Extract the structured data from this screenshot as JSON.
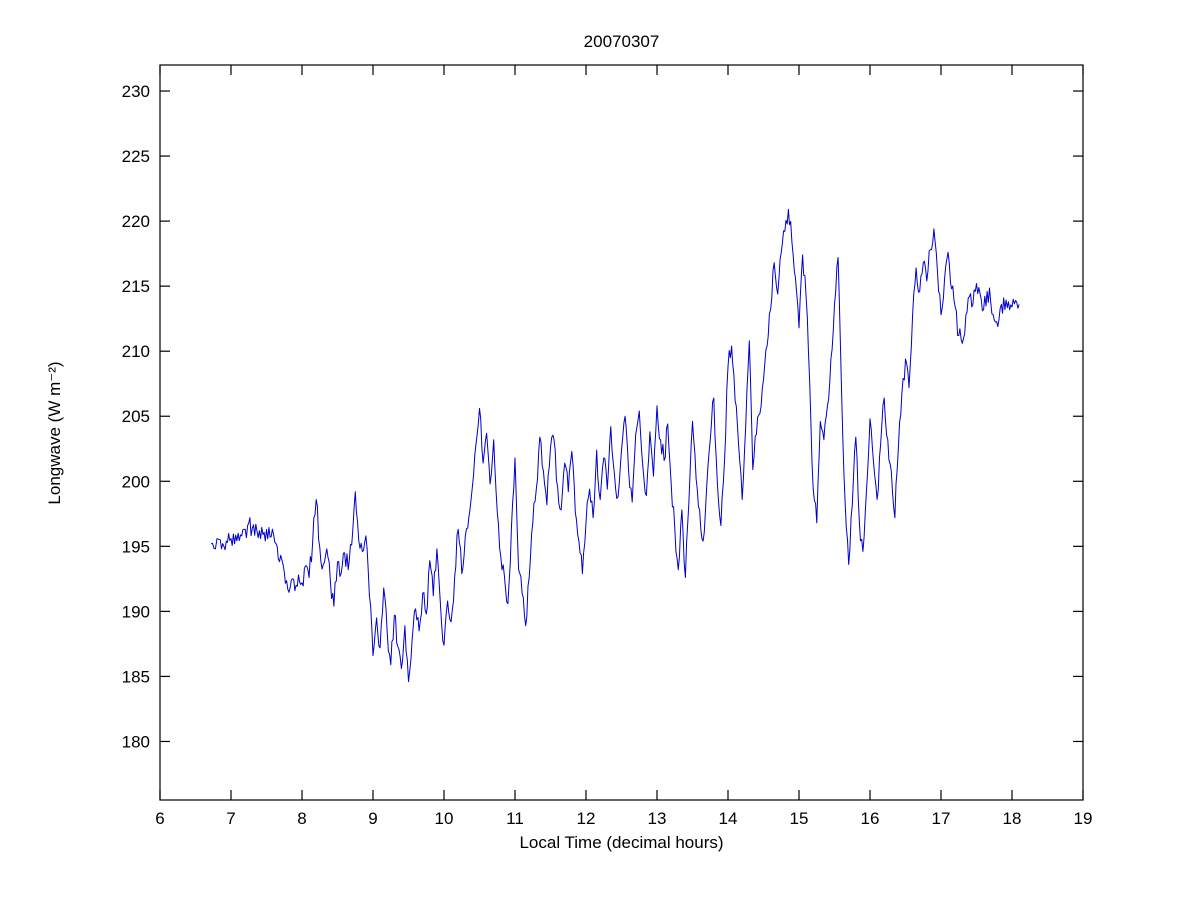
{
  "figure": {
    "background": "#ffffff",
    "axis_color": "#000000",
    "tick_font_size": 17
  },
  "chart_data": {
    "type": "line",
    "title": "20070307",
    "xlabel": "Local Time (decimal hours)",
    "ylabel": "Longwave (W m⁻²)",
    "xlim": [
      6,
      19
    ],
    "ylim": [
      175.5,
      232
    ],
    "x_ticks": [
      6,
      7,
      8,
      9,
      10,
      11,
      12,
      13,
      14,
      15,
      16,
      17,
      18,
      19
    ],
    "y_ticks": [
      180,
      185,
      190,
      195,
      200,
      205,
      210,
      215,
      220,
      225,
      230
    ],
    "grid": false,
    "legend": null,
    "noise": {
      "amplitude": 0.8,
      "substeps": 3,
      "seed": 42
    },
    "series": [
      {
        "name": "longwave",
        "color": "#0000cc",
        "points": [
          [
            6.72,
            195.2
          ],
          [
            6.78,
            194.8
          ],
          [
            6.85,
            195.5
          ],
          [
            6.9,
            195.0
          ],
          [
            6.95,
            195.3
          ],
          [
            7.0,
            195.6
          ],
          [
            7.05,
            195.2
          ],
          [
            7.1,
            196.0
          ],
          [
            7.15,
            195.8
          ],
          [
            7.2,
            196.3
          ],
          [
            7.25,
            196.8
          ],
          [
            7.3,
            196.4
          ],
          [
            7.35,
            196.7
          ],
          [
            7.4,
            196.2
          ],
          [
            7.45,
            195.9
          ],
          [
            7.5,
            196.3
          ],
          [
            7.55,
            195.7
          ],
          [
            7.6,
            195.9
          ],
          [
            7.65,
            195.0
          ],
          [
            7.7,
            194.3
          ],
          [
            7.75,
            193.0
          ],
          [
            7.8,
            191.7
          ],
          [
            7.85,
            192.4
          ],
          [
            7.9,
            191.6
          ],
          [
            7.95,
            192.8
          ],
          [
            8.0,
            192.2
          ],
          [
            8.05,
            193.5
          ],
          [
            8.1,
            192.6
          ],
          [
            8.15,
            195.4
          ],
          [
            8.2,
            198.6
          ],
          [
            8.25,
            194.9
          ],
          [
            8.3,
            193.6
          ],
          [
            8.35,
            194.8
          ],
          [
            8.4,
            192.3
          ],
          [
            8.45,
            190.4
          ],
          [
            8.5,
            193.8
          ],
          [
            8.55,
            192.9
          ],
          [
            8.6,
            194.5
          ],
          [
            8.65,
            193.2
          ],
          [
            8.7,
            195.1
          ],
          [
            8.75,
            199.2
          ],
          [
            8.8,
            195.4
          ],
          [
            8.85,
            194.6
          ],
          [
            8.9,
            195.8
          ],
          [
            8.95,
            191.2
          ],
          [
            9.0,
            186.6
          ],
          [
            9.05,
            189.5
          ],
          [
            9.1,
            187.2
          ],
          [
            9.15,
            191.8
          ],
          [
            9.2,
            188.4
          ],
          [
            9.25,
            185.9
          ],
          [
            9.3,
            189.7
          ],
          [
            9.35,
            187.3
          ],
          [
            9.4,
            185.6
          ],
          [
            9.45,
            188.9
          ],
          [
            9.5,
            184.6
          ],
          [
            9.55,
            187.8
          ],
          [
            9.6,
            190.2
          ],
          [
            9.65,
            188.5
          ],
          [
            9.7,
            191.4
          ],
          [
            9.75,
            189.8
          ],
          [
            9.8,
            193.9
          ],
          [
            9.85,
            191.2
          ],
          [
            9.9,
            194.8
          ],
          [
            9.95,
            190.6
          ],
          [
            10.0,
            187.4
          ],
          [
            10.05,
            190.8
          ],
          [
            10.1,
            189.2
          ],
          [
            10.15,
            192.7
          ],
          [
            10.2,
            196.3
          ],
          [
            10.25,
            192.9
          ],
          [
            10.3,
            195.8
          ],
          [
            10.35,
            197.2
          ],
          [
            10.4,
            199.6
          ],
          [
            10.45,
            202.8
          ],
          [
            10.5,
            205.6
          ],
          [
            10.55,
            201.4
          ],
          [
            10.6,
            203.7
          ],
          [
            10.65,
            199.8
          ],
          [
            10.7,
            203.2
          ],
          [
            10.75,
            197.6
          ],
          [
            10.8,
            194.2
          ],
          [
            10.85,
            192.8
          ],
          [
            10.9,
            190.6
          ],
          [
            10.95,
            196.4
          ],
          [
            11.0,
            201.8
          ],
          [
            11.05,
            193.2
          ],
          [
            11.1,
            191.4
          ],
          [
            11.15,
            188.9
          ],
          [
            11.2,
            192.6
          ],
          [
            11.25,
            196.8
          ],
          [
            11.3,
            199.4
          ],
          [
            11.35,
            203.4
          ],
          [
            11.4,
            200.8
          ],
          [
            11.45,
            198.2
          ],
          [
            11.5,
            202.6
          ],
          [
            11.55,
            203.2
          ],
          [
            11.6,
            199.6
          ],
          [
            11.65,
            197.8
          ],
          [
            11.7,
            201.4
          ],
          [
            11.75,
            199.2
          ],
          [
            11.8,
            202.3
          ],
          [
            11.85,
            197.6
          ],
          [
            11.9,
            195.4
          ],
          [
            11.95,
            192.9
          ],
          [
            12.0,
            196.8
          ],
          [
            12.05,
            199.4
          ],
          [
            12.1,
            197.2
          ],
          [
            12.15,
            202.4
          ],
          [
            12.2,
            198.6
          ],
          [
            12.25,
            201.8
          ],
          [
            12.3,
            199.4
          ],
          [
            12.35,
            204.2
          ],
          [
            12.4,
            200.6
          ],
          [
            12.45,
            198.8
          ],
          [
            12.5,
            202.4
          ],
          [
            12.55,
            205.0
          ],
          [
            12.6,
            200.8
          ],
          [
            12.65,
            198.4
          ],
          [
            12.7,
            203.6
          ],
          [
            12.75,
            205.4
          ],
          [
            12.8,
            201.2
          ],
          [
            12.85,
            198.9
          ],
          [
            12.9,
            203.8
          ],
          [
            12.95,
            200.4
          ],
          [
            13.0,
            205.8
          ],
          [
            13.05,
            203.2
          ],
          [
            13.1,
            201.6
          ],
          [
            13.15,
            204.4
          ],
          [
            13.2,
            199.8
          ],
          [
            13.25,
            196.4
          ],
          [
            13.3,
            193.2
          ],
          [
            13.35,
            197.8
          ],
          [
            13.4,
            192.6
          ],
          [
            13.45,
            198.4
          ],
          [
            13.5,
            204.6
          ],
          [
            13.55,
            200.2
          ],
          [
            13.6,
            197.8
          ],
          [
            13.65,
            195.4
          ],
          [
            13.7,
            199.6
          ],
          [
            13.75,
            203.2
          ],
          [
            13.8,
            206.4
          ],
          [
            13.85,
            199.8
          ],
          [
            13.9,
            196.6
          ],
          [
            13.95,
            201.4
          ],
          [
            14.0,
            208.8
          ],
          [
            14.05,
            210.4
          ],
          [
            14.1,
            206.2
          ],
          [
            14.15,
            202.8
          ],
          [
            14.2,
            198.6
          ],
          [
            14.25,
            204.4
          ],
          [
            14.3,
            210.8
          ],
          [
            14.35,
            200.9
          ],
          [
            14.4,
            203.6
          ],
          [
            14.45,
            205.2
          ],
          [
            14.5,
            207.8
          ],
          [
            14.55,
            210.4
          ],
          [
            14.6,
            213.2
          ],
          [
            14.65,
            216.8
          ],
          [
            14.7,
            214.4
          ],
          [
            14.75,
            217.6
          ],
          [
            14.8,
            219.2
          ],
          [
            14.85,
            220.9
          ],
          [
            14.9,
            218.4
          ],
          [
            14.95,
            215.6
          ],
          [
            15.0,
            211.8
          ],
          [
            15.05,
            217.4
          ],
          [
            15.1,
            214.2
          ],
          [
            15.15,
            207.6
          ],
          [
            15.2,
            199.4
          ],
          [
            15.25,
            196.8
          ],
          [
            15.3,
            204.6
          ],
          [
            15.35,
            203.2
          ],
          [
            15.4,
            205.8
          ],
          [
            15.45,
            209.4
          ],
          [
            15.5,
            213.6
          ],
          [
            15.55,
            217.2
          ],
          [
            15.6,
            206.8
          ],
          [
            15.65,
            198.4
          ],
          [
            15.7,
            193.6
          ],
          [
            15.75,
            198.2
          ],
          [
            15.8,
            203.4
          ],
          [
            15.85,
            196.8
          ],
          [
            15.9,
            194.6
          ],
          [
            15.95,
            199.2
          ],
          [
            16.0,
            204.8
          ],
          [
            16.05,
            201.4
          ],
          [
            16.1,
            198.6
          ],
          [
            16.15,
            202.8
          ],
          [
            16.2,
            206.4
          ],
          [
            16.25,
            203.2
          ],
          [
            16.3,
            200.8
          ],
          [
            16.35,
            197.2
          ],
          [
            16.4,
            202.6
          ],
          [
            16.45,
            206.8
          ],
          [
            16.5,
            209.4
          ],
          [
            16.55,
            207.2
          ],
          [
            16.6,
            212.8
          ],
          [
            16.65,
            216.4
          ],
          [
            16.7,
            214.6
          ],
          [
            16.75,
            216.8
          ],
          [
            16.8,
            215.4
          ],
          [
            16.85,
            217.8
          ],
          [
            16.9,
            219.4
          ],
          [
            16.95,
            216.2
          ],
          [
            17.0,
            212.8
          ],
          [
            17.05,
            215.6
          ],
          [
            17.1,
            217.6
          ],
          [
            17.15,
            214.8
          ],
          [
            17.2,
            213.4
          ],
          [
            17.25,
            211.2
          ],
          [
            17.3,
            210.6
          ],
          [
            17.35,
            212.8
          ],
          [
            17.4,
            214.2
          ],
          [
            17.45,
            213.6
          ],
          [
            17.5,
            215.2
          ],
          [
            17.55,
            214.4
          ],
          [
            17.6,
            213.2
          ],
          [
            17.65,
            214.6
          ],
          [
            17.7,
            213.8
          ],
          [
            17.75,
            212.4
          ],
          [
            17.8,
            211.9
          ],
          [
            17.85,
            213.6
          ],
          [
            17.9,
            213.2
          ],
          [
            17.95,
            213.8
          ],
          [
            18.0,
            213.4
          ],
          [
            18.05,
            213.9
          ],
          [
            18.1,
            213.6
          ]
        ]
      }
    ]
  }
}
